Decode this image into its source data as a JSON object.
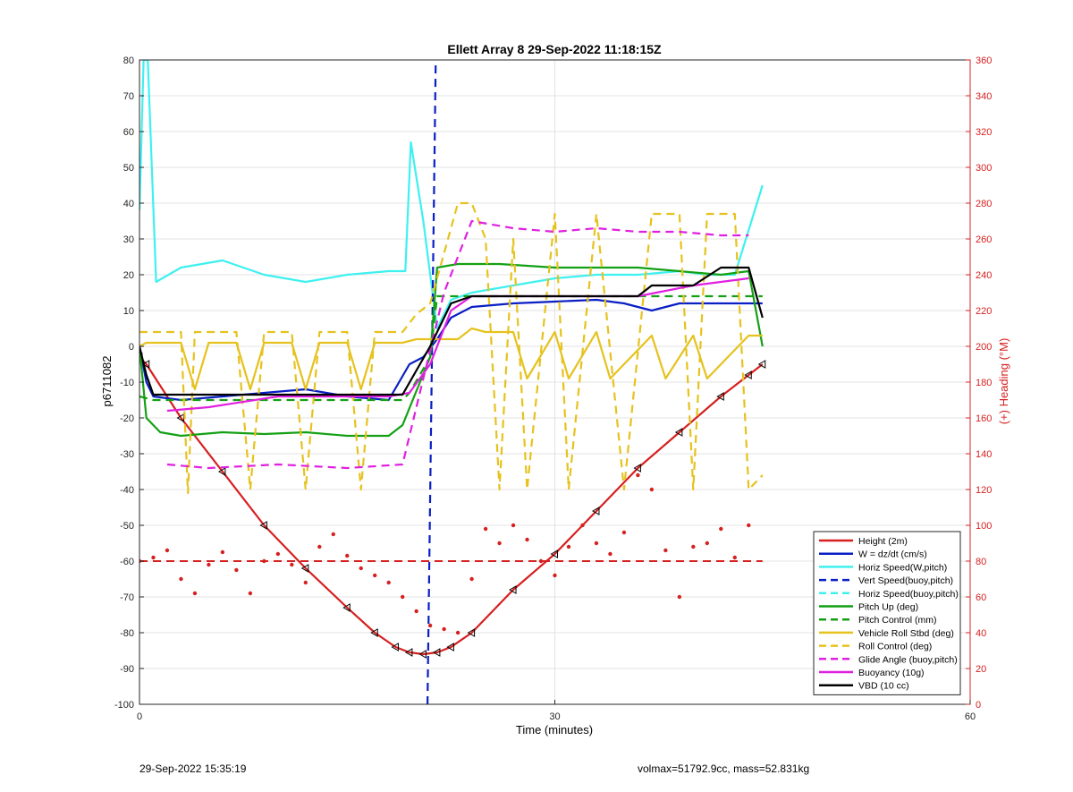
{
  "chart_data": {
    "type": "line",
    "title": "Ellett Array 8 29-Sep-2022 11:18:15Z",
    "xlabel": "Time (minutes)",
    "ylabel": "p6711082",
    "y2label": "(+) Heading (°M)",
    "xlim": [
      0,
      60
    ],
    "ylim": [
      -100,
      80
    ],
    "y2lim": [
      0,
      360
    ],
    "x_ticks": [
      0,
      30,
      60
    ],
    "y_ticks": [
      -100,
      -90,
      -80,
      -70,
      -60,
      -50,
      -40,
      -30,
      -20,
      -10,
      0,
      10,
      20,
      30,
      40,
      50,
      60,
      70,
      80
    ],
    "y2_ticks": [
      0,
      20,
      40,
      60,
      80,
      100,
      120,
      140,
      160,
      180,
      200,
      220,
      240,
      260,
      280,
      300,
      320,
      340,
      360
    ],
    "grid": true,
    "legend_position": "bottom-right",
    "colors": {
      "red": "#d62020",
      "blue": "#0a1fc4",
      "cyan": "#3ff0f0",
      "green": "#14a014",
      "gold": "#e6c21e",
      "magenta": "#e020e0",
      "black": "#000000",
      "axis2": "#d62020"
    },
    "series": [
      {
        "name": "Height (2m)",
        "color": "red",
        "style": "solid",
        "axis": "left",
        "x": [
          0,
          0.5,
          3,
          6,
          9,
          12,
          15,
          17,
          18.5,
          19.5,
          20.5,
          21.5,
          22.5,
          24,
          27,
          30,
          33,
          36,
          39,
          42,
          44,
          45
        ],
        "y": [
          -3,
          -5,
          -20,
          -35,
          -50,
          -62,
          -73,
          -80,
          -84,
          -85.5,
          -86,
          -85.5,
          -84,
          -80,
          -68,
          -58,
          -46,
          -34,
          -24,
          -14,
          -8,
          -5
        ]
      },
      {
        "name": "W = dz/dt (cm/s)",
        "color": "blue",
        "style": "solid",
        "axis": "left",
        "x": [
          0,
          0.5,
          1,
          3,
          6,
          9,
          12,
          15,
          18,
          19.5,
          20.5,
          21.5,
          22.5,
          24,
          27,
          30,
          33,
          35,
          37,
          39,
          41,
          43,
          45
        ],
        "y": [
          0,
          -10,
          -14,
          -15,
          -14,
          -13,
          -12,
          -14,
          -15,
          -5,
          -3,
          2,
          8,
          11,
          12,
          12.5,
          13,
          12,
          10,
          12,
          12,
          12,
          12
        ]
      },
      {
        "name": "Horiz Speed(W,pitch)",
        "color": "cyan",
        "style": "solid",
        "axis": "left",
        "x": [
          0,
          0.3,
          0.6,
          1.2,
          3,
          6,
          9,
          12,
          15,
          18,
          19.2,
          19.6,
          20.5,
          21.5,
          22.5,
          24,
          27,
          30,
          33,
          36,
          39,
          41,
          43,
          45
        ],
        "y": [
          38,
          80,
          80,
          18,
          22,
          24,
          20,
          18,
          20,
          21,
          21,
          57,
          35,
          5,
          13,
          15,
          17,
          19,
          20,
          20,
          21,
          20,
          20,
          45
        ]
      },
      {
        "name": "Vert Speed(buoy,pitch)",
        "color": "blue",
        "style": "dashed",
        "axis": "left",
        "x": [
          20.8,
          21.4
        ],
        "y": [
          -100,
          80
        ]
      },
      {
        "name": "Horiz Speed(buoy,pitch)",
        "color": "cyan",
        "style": "dashed",
        "axis": "left",
        "x": [],
        "y": []
      },
      {
        "name": "Pitch Up (deg)",
        "color": "green",
        "style": "solid",
        "axis": "left",
        "x": [
          0,
          0.5,
          1.5,
          3,
          6,
          9,
          12,
          15,
          18,
          19,
          21,
          21.5,
          23,
          26,
          30,
          33,
          36,
          39,
          42,
          44,
          45
        ],
        "y": [
          0,
          -20,
          -24,
          -25,
          -24,
          -24.5,
          -24,
          -25,
          -25,
          -22,
          -3,
          22,
          23,
          23,
          22,
          22,
          22,
          21,
          20,
          21,
          0
        ]
      },
      {
        "name": "Pitch Control (mm)",
        "color": "green",
        "style": "dashed",
        "axis": "left",
        "x": [
          0,
          1,
          5,
          10,
          15,
          19,
          19.5,
          21,
          21.5,
          24,
          30,
          36,
          40,
          45
        ],
        "y": [
          -14,
          -15,
          -15,
          -15,
          -15,
          -15,
          -13,
          -3,
          14,
          14,
          14,
          14,
          14,
          14
        ]
      },
      {
        "name": "Vehicle Roll Stbd (deg)",
        "color": "gold",
        "style": "solid",
        "axis": "left",
        "x": [
          0,
          0.5,
          3,
          4,
          5,
          7,
          8,
          9,
          11,
          12,
          13,
          15,
          16,
          17,
          18,
          19,
          20,
          21,
          23,
          24,
          25,
          27,
          28,
          30,
          31,
          33,
          34,
          37,
          38,
          40,
          41,
          44,
          45
        ],
        "y": [
          0,
          1,
          1,
          -12,
          1,
          1,
          -12,
          1,
          1,
          -12,
          1,
          1,
          -12,
          1,
          1,
          1,
          2,
          2,
          2,
          5,
          4,
          4,
          -9,
          4,
          -9,
          4,
          -9,
          3,
          -9,
          3,
          -9,
          3,
          3
        ]
      },
      {
        "name": "Roll Control (deg)",
        "color": "gold",
        "style": "dashed",
        "axis": "left",
        "x": [
          0,
          1,
          3,
          3.5,
          4,
          5,
          7,
          8,
          9,
          11,
          12,
          13,
          15,
          16,
          17,
          18,
          19,
          20,
          21,
          23,
          24,
          25,
          26,
          27,
          28,
          30,
          31,
          33,
          35,
          37,
          39,
          40,
          41,
          43,
          44,
          45
        ],
        "y": [
          4,
          4,
          4,
          -41,
          4,
          4,
          4,
          -40,
          4,
          4,
          -40,
          4,
          4,
          -40,
          4,
          4,
          4,
          9,
          12,
          40,
          40,
          30,
          -40,
          30,
          -40,
          37,
          -40,
          37,
          -40,
          37,
          37,
          -40,
          37,
          37,
          -40,
          -36
        ]
      },
      {
        "name": "Glide Angle (buoy,pitch)",
        "color": "magenta",
        "style": "dashed",
        "axis": "left",
        "x": [
          2,
          5,
          10,
          15,
          19,
          22,
          24,
          27,
          30,
          33,
          36,
          39,
          42,
          44
        ],
        "y": [
          -33,
          -34,
          -33,
          -34,
          -33,
          15,
          35,
          33,
          32,
          33,
          32,
          32,
          31,
          31
        ]
      },
      {
        "name": "Buoyancy (10g)",
        "color": "magenta",
        "style": "solid",
        "axis": "left",
        "x": [
          2,
          5,
          10,
          15,
          18,
          19.5,
          21,
          22.5,
          24,
          30,
          36,
          40,
          42,
          44
        ],
        "y": [
          -18,
          -17,
          -14,
          -14,
          -14,
          -13,
          -5,
          10,
          14,
          14,
          14,
          17,
          18,
          19
        ]
      },
      {
        "name": "VBD (10 cc)",
        "color": "black",
        "style": "solid",
        "axis": "left",
        "x": [
          0,
          0.5,
          1,
          5,
          10,
          15,
          19,
          21,
          22.5,
          24,
          30,
          36,
          37,
          40,
          42,
          44,
          45
        ],
        "y": [
          0,
          -8,
          -13.5,
          -13.5,
          -13.5,
          -13.5,
          -13.5,
          0,
          12,
          14,
          14,
          14,
          17,
          17,
          22,
          22,
          8
        ]
      },
      {
        "name": "Heading",
        "color": "red",
        "style": "dots",
        "axis": "right",
        "x": [
          0,
          1,
          2,
          3,
          4,
          5,
          6,
          7,
          8,
          9,
          10,
          11,
          12,
          13,
          14,
          15,
          16,
          17,
          18,
          19,
          20,
          21,
          22,
          23,
          24,
          25,
          26,
          27,
          28,
          29,
          30,
          31,
          32,
          33,
          34,
          35,
          36,
          37,
          38,
          39,
          40,
          41,
          42,
          43,
          44
        ],
        "y": [
          80,
          82,
          86,
          70,
          62,
          78,
          85,
          75,
          62,
          80,
          84,
          78,
          68,
          88,
          95,
          83,
          76,
          72,
          68,
          60,
          52,
          44,
          42,
          40,
          70,
          98,
          90,
          100,
          92,
          80,
          72,
          88,
          100,
          90,
          84,
          96,
          128,
          120,
          86,
          60,
          88,
          90,
          98,
          82,
          100
        ]
      }
    ],
    "reference_lines": [
      {
        "axis": "left",
        "y": -60,
        "color": "red",
        "style": "dashed"
      }
    ]
  },
  "footer": {
    "left": "29-Sep-2022 15:35:19",
    "right": "volmax=51792.9cc, mass=52.831kg"
  }
}
